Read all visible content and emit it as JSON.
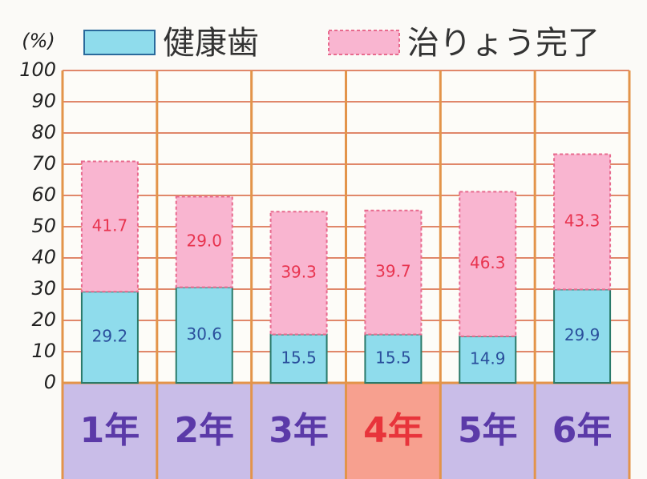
{
  "chart_data": {
    "type": "stacked-bar",
    "y_label": "(%)",
    "categories": [
      "1年",
      "2年",
      "3年",
      "4年",
      "5年",
      "6年"
    ],
    "category_colors": [
      "#5b3aa8",
      "#5b3aa8",
      "#5b3aa8",
      "#e8343b",
      "#5b3aa8",
      "#5b3aa8"
    ],
    "category_backgrounds": [
      "#c9bde8",
      "#c9bde8",
      "#c9bde8",
      "#f7a08f",
      "#c9bde8",
      "#c9bde8"
    ],
    "series": [
      {
        "name": "健康歯",
        "color": "#8fdcec",
        "label_color": "#2a4f9c",
        "values": [
          29.2,
          30.6,
          15.5,
          15.5,
          14.9,
          29.9
        ]
      },
      {
        "name": "治りょう完了",
        "color": "#f9b5d0",
        "label_color": "#e8344f",
        "values": [
          41.7,
          29.0,
          39.3,
          39.7,
          46.3,
          43.3
        ],
        "value_labels": [
          "41.7",
          "29.0",
          "39.3",
          "39.7",
          "46.3",
          "43.3"
        ]
      }
    ],
    "ylim": [
      0,
      100
    ],
    "yticks": [
      0,
      10,
      20,
      30,
      40,
      50,
      60,
      70,
      80,
      90,
      100
    ],
    "grid": true
  }
}
